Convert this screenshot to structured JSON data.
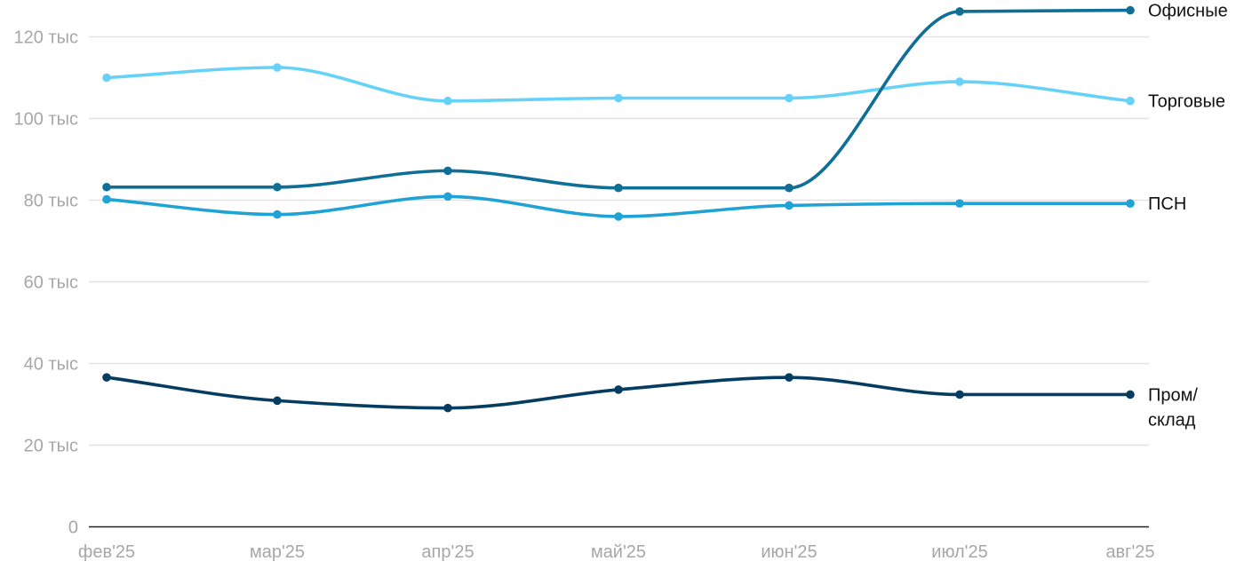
{
  "chart_data": {
    "type": "line",
    "categories": [
      "фев'25",
      "мар'25",
      "апр'25",
      "май'25",
      "июн'25",
      "июл'25",
      "авг'25"
    ],
    "y_ticks": [
      {
        "value": 0,
        "label": "0"
      },
      {
        "value": 20000,
        "label": "20 тыс"
      },
      {
        "value": 40000,
        "label": "40 тыс"
      },
      {
        "value": 60000,
        "label": "60 тыс"
      },
      {
        "value": 80000,
        "label": "80 тыс"
      },
      {
        "value": 100000,
        "label": "100 тыс"
      },
      {
        "value": 120000,
        "label": "120 тыс"
      }
    ],
    "ylim": [
      0,
      120000
    ],
    "grid": true,
    "legend": "inline labels at right end of each line",
    "series": [
      {
        "name": "Торговые",
        "color": "#66d2f7",
        "values": [
          110000,
          112500,
          104300,
          105000,
          105000,
          109000,
          104300
        ]
      },
      {
        "name": "Офисные",
        "color": "#0f6f96",
        "values": [
          83200,
          83200,
          87200,
          83000,
          83000,
          126200,
          126500
        ]
      },
      {
        "name": "ПСН",
        "color": "#1fa3d4",
        "values": [
          80200,
          76500,
          80900,
          76000,
          78700,
          79200,
          79200
        ]
      },
      {
        "name": "Пром/ склад",
        "label_lines": [
          "Пром/",
          "склад"
        ],
        "color": "#053c61",
        "values": [
          36600,
          30900,
          29100,
          33600,
          36600,
          32400,
          32400
        ]
      }
    ]
  }
}
